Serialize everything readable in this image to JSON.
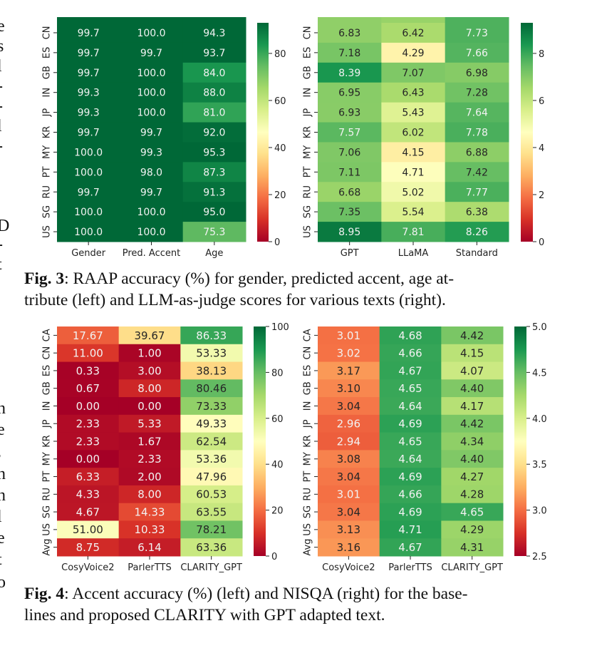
{
  "page_edge_fragments": {
    "top": [
      "e",
      "s",
      "l",
      "-",
      "-",
      "l",
      "-",
      "",
      "",
      "",
      "D",
      "-",
      "t"
    ],
    "bottom": [
      "n",
      "e",
      ",",
      "n",
      "n",
      "l",
      "e",
      "t",
      "o"
    ]
  },
  "captions": {
    "fig3": {
      "label": "Fig. 3",
      "text": ": RAAP accuracy (%) for gender, predicted accent, age at-",
      "text2": "tribute (left) and LLM-as-judge scores for various texts (right)."
    },
    "fig4": {
      "label": "Fig. 4",
      "text": ": Accent accuracy (%) (left) and NISQA (right) for the base-",
      "text2": "lines and proposed CLARITY with GPT adapted text."
    }
  },
  "chart_data": [
    {
      "id": "fig3-left",
      "type": "heatmap",
      "title": "",
      "colormap": "RdYlGn",
      "rows": [
        "CN",
        "ES",
        "GB",
        "IN",
        "JP",
        "KR",
        "MY",
        "PT",
        "RU",
        "SG",
        "US"
      ],
      "columns": [
        "Gender",
        "Pred. Accent",
        "Age"
      ],
      "values": [
        [
          99.7,
          100.0,
          94.3
        ],
        [
          99.7,
          99.7,
          93.7
        ],
        [
          99.7,
          100.0,
          84.0
        ],
        [
          99.3,
          100.0,
          88.0
        ],
        [
          99.3,
          100.0,
          81.0
        ],
        [
          99.7,
          99.7,
          92.0
        ],
        [
          100.0,
          99.3,
          95.3
        ],
        [
          100.0,
          98.0,
          87.3
        ],
        [
          99.7,
          99.7,
          91.3
        ],
        [
          100.0,
          100.0,
          95.0
        ],
        [
          100.0,
          100.0,
          75.3
        ]
      ],
      "value_format": 1,
      "colorbar": {
        "range": [
          0,
          93
        ],
        "ticks": [
          0,
          20,
          40,
          60,
          80
        ],
        "tick_labels": [
          "0",
          "20",
          "40",
          "60",
          "80"
        ]
      },
      "partial_top_row": true
    },
    {
      "id": "fig3-right",
      "type": "heatmap",
      "title": "",
      "colormap": "RdYlGn",
      "rows": [
        "CN",
        "ES",
        "GB",
        "IN",
        "JP",
        "KR",
        "MY",
        "PT",
        "RU",
        "SG",
        "US"
      ],
      "columns": [
        "GPT",
        "LLaMA",
        "Standard"
      ],
      "values": [
        [
          6.83,
          6.42,
          7.73
        ],
        [
          7.18,
          4.29,
          7.66
        ],
        [
          8.39,
          7.07,
          6.98
        ],
        [
          6.95,
          6.43,
          7.28
        ],
        [
          6.93,
          5.43,
          7.64
        ],
        [
          7.57,
          6.02,
          7.78
        ],
        [
          7.06,
          4.15,
          6.88
        ],
        [
          7.11,
          4.71,
          7.42
        ],
        [
          6.68,
          5.02,
          7.77
        ],
        [
          7.35,
          5.54,
          6.38
        ],
        [
          8.95,
          7.81,
          8.26
        ]
      ],
      "value_format": 2,
      "colorbar": {
        "range": [
          0,
          9.3
        ],
        "ticks": [
          0,
          2,
          4,
          6,
          8
        ],
        "tick_labels": [
          "0",
          "2",
          "4",
          "6",
          "8"
        ]
      },
      "partial_top_row": true
    },
    {
      "id": "fig4-left",
      "type": "heatmap",
      "title": "",
      "colormap": "RdYlGn",
      "rows": [
        "CA",
        "CN",
        "ES",
        "GB",
        "IN",
        "JP",
        "KR",
        "MY",
        "PT",
        "RU",
        "SG",
        "US",
        "Avg"
      ],
      "columns": [
        "CosyVoice2",
        "ParlerTTS",
        "CLARITY_GPT"
      ],
      "values": [
        [
          17.67,
          39.67,
          86.33
        ],
        [
          11.0,
          1.0,
          53.33
        ],
        [
          0.33,
          3.0,
          38.13
        ],
        [
          0.67,
          8.0,
          80.46
        ],
        [
          0.0,
          0.0,
          73.33
        ],
        [
          2.33,
          5.33,
          49.33
        ],
        [
          2.33,
          1.67,
          62.54
        ],
        [
          0.0,
          2.33,
          53.36
        ],
        [
          6.33,
          2.0,
          47.96
        ],
        [
          4.33,
          8.0,
          60.53
        ],
        [
          4.67,
          14.33,
          63.55
        ],
        [
          51.0,
          10.33,
          78.21
        ],
        [
          8.75,
          6.14,
          63.36
        ]
      ],
      "value_format": 2,
      "colorbar": {
        "range": [
          0,
          100
        ],
        "ticks": [
          0,
          20,
          40,
          60,
          80,
          100
        ],
        "tick_labels": [
          "0",
          "20",
          "40",
          "60",
          "80",
          "100"
        ]
      },
      "partial_top_row": false
    },
    {
      "id": "fig4-right",
      "type": "heatmap",
      "title": "",
      "colormap": "RdYlGn",
      "rows": [
        "CA",
        "CN",
        "ES",
        "GB",
        "IN",
        "JP",
        "KR",
        "MY",
        "PT",
        "RU",
        "SG",
        "US",
        "Avg"
      ],
      "columns": [
        "CosyVoice2",
        "ParlerTTS",
        "CLARITY_GPT"
      ],
      "values": [
        [
          3.01,
          4.68,
          4.42
        ],
        [
          3.02,
          4.66,
          4.15
        ],
        [
          3.17,
          4.67,
          4.07
        ],
        [
          3.1,
          4.65,
          4.4
        ],
        [
          3.04,
          4.64,
          4.17
        ],
        [
          2.96,
          4.69,
          4.42
        ],
        [
          2.94,
          4.65,
          4.34
        ],
        [
          3.08,
          4.64,
          4.4
        ],
        [
          3.04,
          4.69,
          4.27
        ],
        [
          3.01,
          4.66,
          4.28
        ],
        [
          3.04,
          4.69,
          4.65
        ],
        [
          3.13,
          4.71,
          4.29
        ],
        [
          3.16,
          4.67,
          4.31
        ]
      ],
      "value_format": 2,
      "colorbar": {
        "range": [
          2.5,
          5.0
        ],
        "ticks": [
          2.5,
          3.0,
          3.5,
          4.0,
          4.5,
          5.0
        ],
        "tick_labels": [
          "2.5",
          "3.0",
          "3.5",
          "4.0",
          "4.5",
          "5.0"
        ]
      },
      "partial_top_row": false
    }
  ]
}
